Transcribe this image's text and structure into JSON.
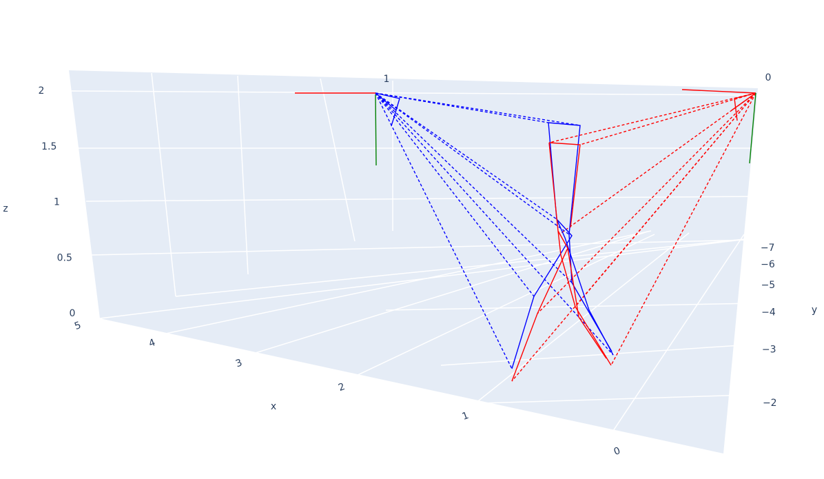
{
  "chart_data": {
    "type": "scatter3d",
    "annotations": [
      "1",
      "0"
    ],
    "xaxis_title": "x",
    "yaxis_title": "y",
    "zaxis_title": "z",
    "xlim": [
      -0.7,
      5
    ],
    "xticks": [
      0,
      1,
      2,
      3,
      4,
      5
    ],
    "ylim": [
      -7.5,
      -1.5
    ],
    "yticks": [
      {
        "value": -7,
        "label": "−7"
      },
      {
        "value": -6,
        "label": "−6"
      },
      {
        "value": -5,
        "label": "−5"
      },
      {
        "value": -4,
        "label": "−4"
      },
      {
        "value": -3,
        "label": "−3"
      },
      {
        "value": -2,
        "label": "−2"
      }
    ],
    "zlim": [
      0,
      2.2
    ],
    "zticks": [
      0,
      0.5,
      1,
      1.5,
      2
    ]
  }
}
